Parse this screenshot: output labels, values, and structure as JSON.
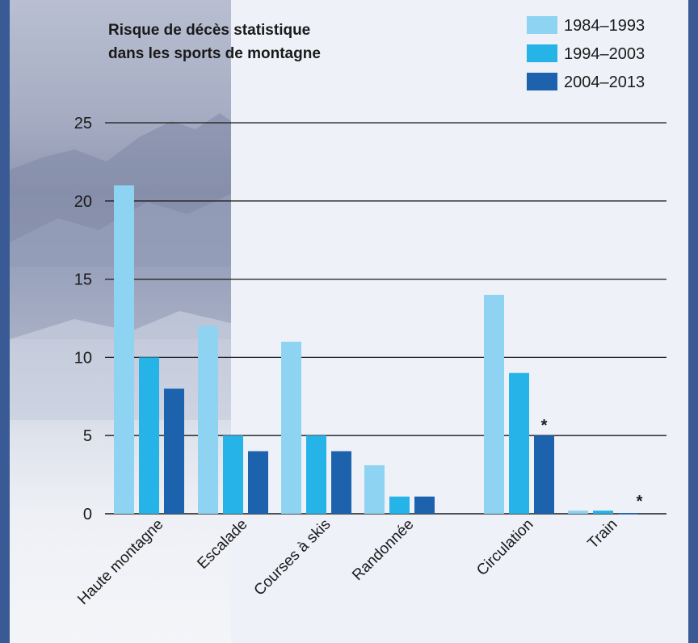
{
  "colors": {
    "series1": "#8fd3f2",
    "series2": "#25b3e8",
    "series3": "#1c62ad",
    "border": "#3a5a96",
    "panel": "#eef1f7"
  },
  "chart_data": {
    "type": "bar",
    "title": "Risque de décès statistique dans les sports de montagne",
    "title_lines": [
      "Risque de décès statistique",
      "dans les sports de montagne"
    ],
    "categories": [
      "Haute montagne",
      "Escalade",
      "Courses à skis",
      "Randonnée",
      "Circulation",
      "Train"
    ],
    "series": [
      {
        "name": "1984–1993",
        "values": [
          21,
          12,
          11,
          3.1,
          14,
          0.2
        ]
      },
      {
        "name": "1994–2003",
        "values": [
          10,
          5,
          5,
          1.1,
          9,
          0.2
        ]
      },
      {
        "name": "2004–2013",
        "values": [
          8,
          4,
          4,
          1.1,
          5,
          0.05
        ]
      }
    ],
    "ylim": [
      0,
      25
    ],
    "yticks": [
      0,
      5,
      10,
      15,
      20,
      25
    ],
    "grid": true,
    "legend_position": "top-right",
    "annotations": [
      {
        "category": "Circulation",
        "series": "2004–2013",
        "text": "*"
      },
      {
        "category": "Train",
        "series": "2004–2013",
        "text": "*"
      }
    ]
  }
}
